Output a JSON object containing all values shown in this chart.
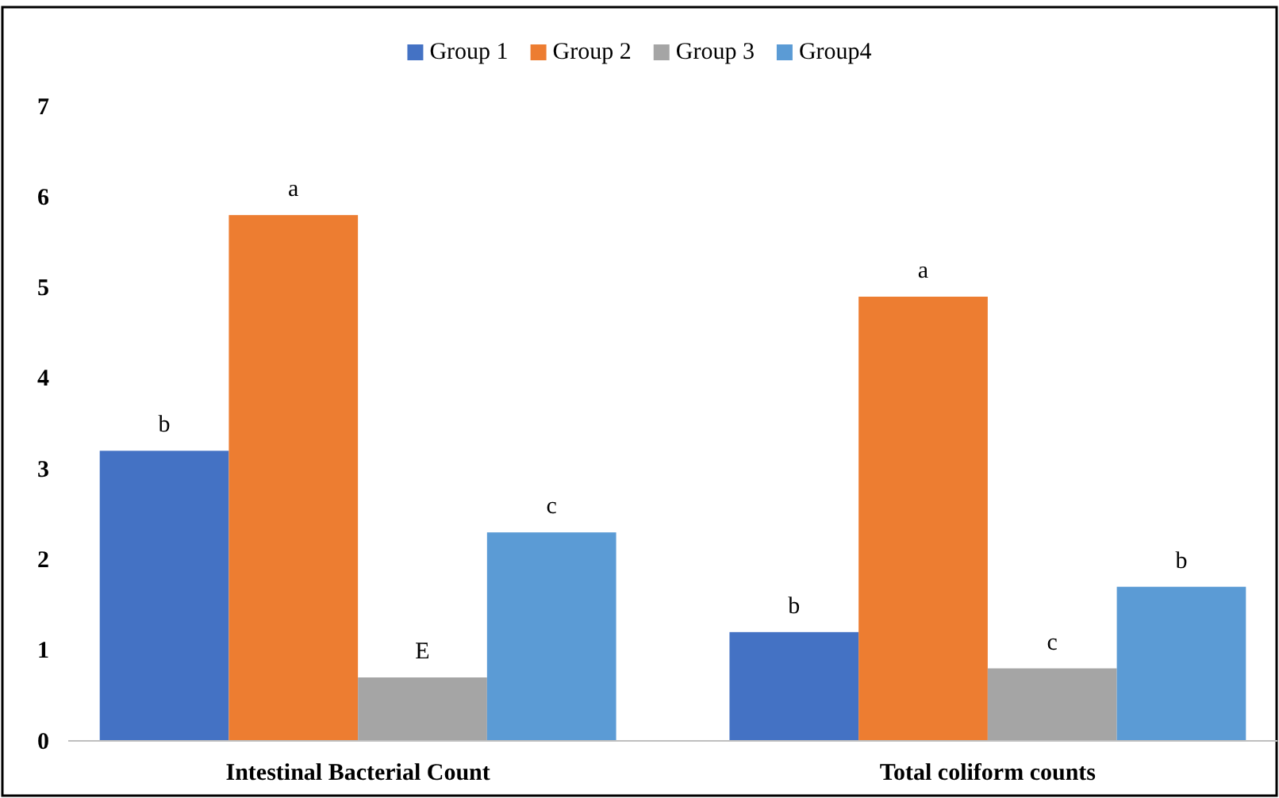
{
  "chart_data": {
    "type": "bar",
    "categories": [
      "Intestinal Bacterial Count",
      "Total coliform counts"
    ],
    "series": [
      {
        "name": "Group 1",
        "color": "#4472c4",
        "values": [
          3.2,
          1.2
        ]
      },
      {
        "name": "Group 2",
        "color": "#ed7d31",
        "values": [
          5.8,
          4.9
        ]
      },
      {
        "name": "Group 3",
        "color": "#a5a5a5",
        "values": [
          0.7,
          0.8
        ]
      },
      {
        "name": "Group4",
        "color": "#5b9bd5",
        "values": [
          2.3,
          1.7
        ]
      }
    ],
    "ylim": [
      0,
      7
    ],
    "yticks": [
      0,
      1,
      2,
      3,
      4,
      5,
      6,
      7
    ],
    "grid": false,
    "legend": "top",
    "annotations": [
      "b",
      "a",
      "E",
      "c",
      "b",
      "a",
      "c",
      "b"
    ]
  }
}
